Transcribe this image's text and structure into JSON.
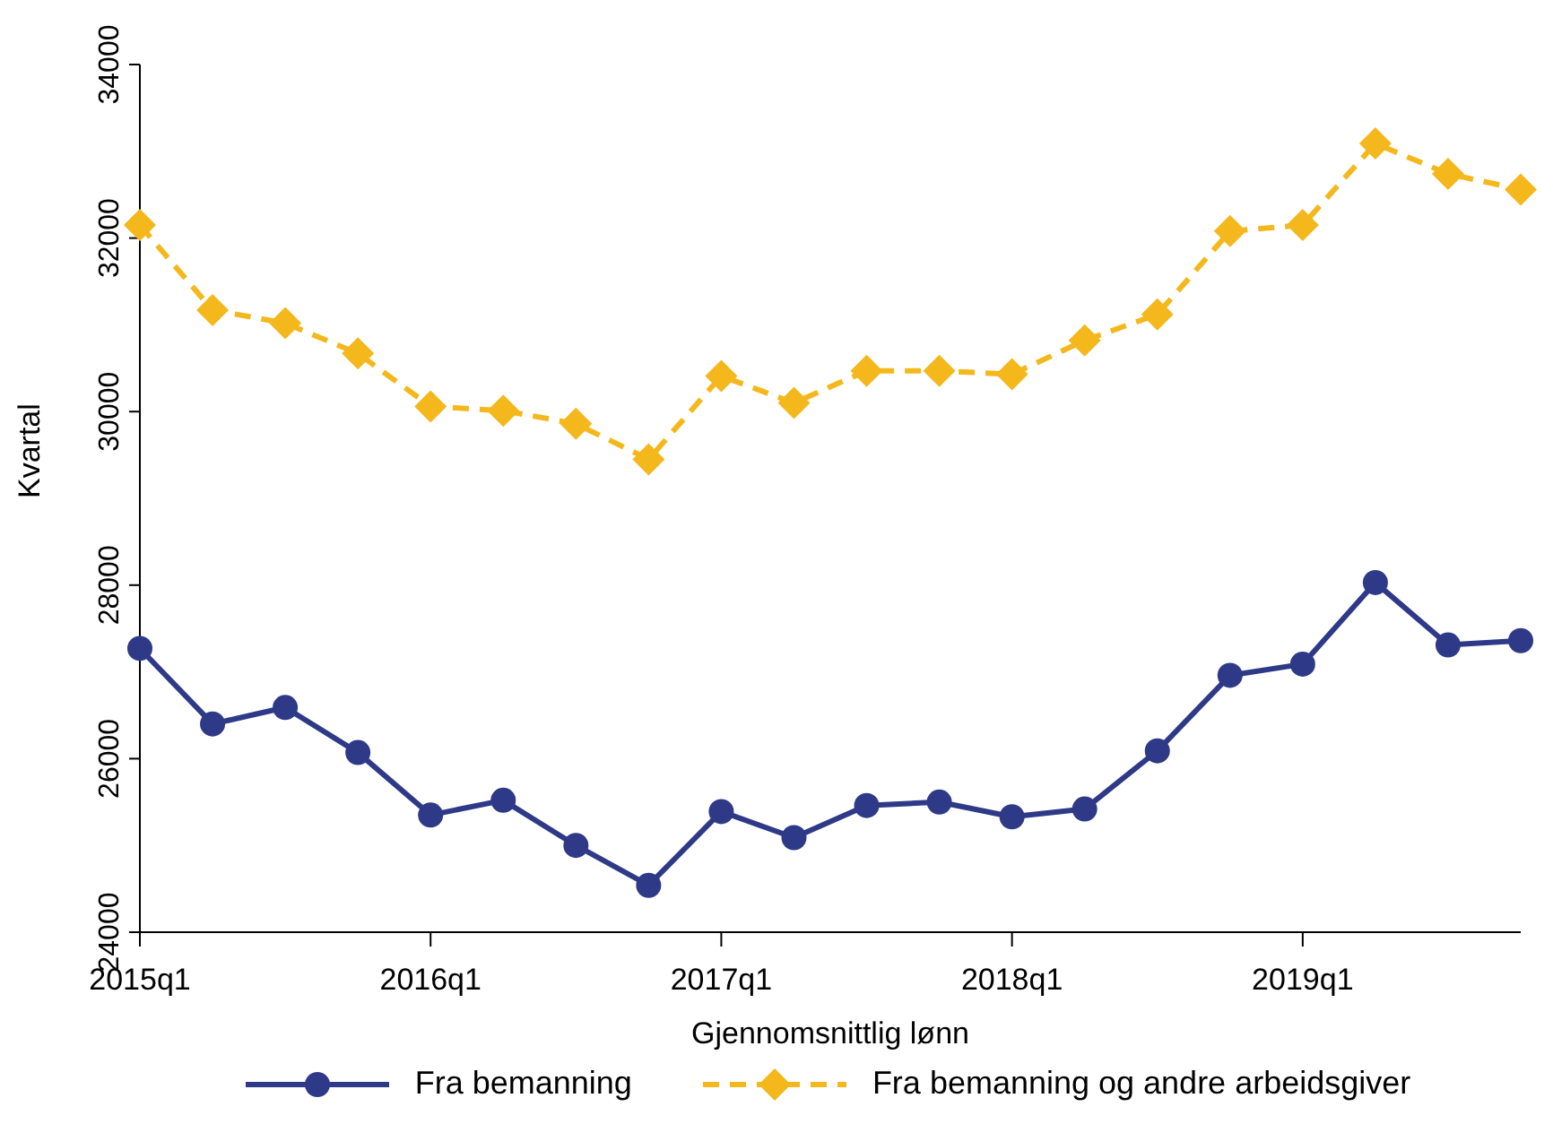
{
  "chart_data": {
    "type": "line",
    "xlabel": "Gjennomsnittlig lønn",
    "ylabel": "Kvartal",
    "categories": [
      "2015q1",
      null,
      null,
      null,
      "2016q1",
      null,
      null,
      null,
      "2017q1",
      null,
      null,
      null,
      "2018q1",
      null,
      null,
      null,
      "2019q1",
      null,
      null,
      null
    ],
    "series": [
      {
        "name": "Fra bemanning",
        "color": "#2e3a87",
        "marker": "circle",
        "line_style": "solid",
        "values": [
          27270,
          26400,
          26590,
          26070,
          25350,
          25520,
          25000,
          24540,
          25390,
          25090,
          25460,
          25500,
          25330,
          25420,
          26090,
          26960,
          27090,
          28030,
          27310,
          27360
        ]
      },
      {
        "name": "Fra bemanning og andre arbeidsgiver",
        "color": "#f4b81c",
        "marker": "diamond",
        "line_style": "dashed",
        "values": [
          32150,
          31170,
          31020,
          30670,
          30060,
          30010,
          29860,
          29450,
          30410,
          30100,
          30470,
          30470,
          30430,
          30820,
          31120,
          32080,
          32150,
          33090,
          32740,
          32560
        ]
      }
    ],
    "ylim": [
      24000,
      34000
    ],
    "yticks": [
      24000,
      26000,
      28000,
      30000,
      32000,
      34000
    ],
    "grid": false,
    "legend": "bottom"
  }
}
